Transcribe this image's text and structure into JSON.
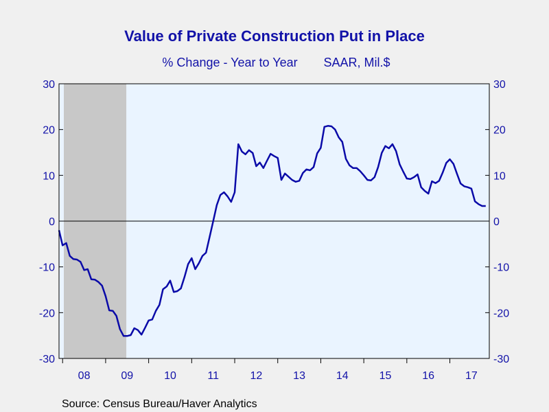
{
  "chart_data": {
    "type": "line",
    "title": "Value of Private Construction Put in Place",
    "subtitle_left": "% Change - Year to Year",
    "subtitle_right": "SAAR, Mil.$",
    "source": "Source:  Census Bureau/Haver Analytics",
    "ylim": [
      -30,
      30
    ],
    "yticks": [
      30,
      20,
      10,
      0,
      -10,
      -20,
      -30
    ],
    "ytick_labels_left": [
      "30",
      "20",
      "10",
      "0",
      "-10",
      "-20",
      "-30"
    ],
    "ytick_labels_right": [
      "30",
      "20",
      "10",
      "0",
      "-10",
      "-20",
      "-30"
    ],
    "x_start": "2007-12",
    "x_end": "2017-12",
    "xtick_labels": [
      "08",
      "09",
      "10",
      "11",
      "12",
      "13",
      "14",
      "15",
      "16",
      "17"
    ],
    "recession": {
      "start": "2007-12",
      "end": "2009-06"
    },
    "zero_line": true,
    "grid": false,
    "colors": {
      "line": "#0a0aa8",
      "text": "#1212a8",
      "plot_bg": "#eaf4ff",
      "recession": "#c8c8c8",
      "page_bg": "#f0f0f0"
    },
    "series": [
      {
        "x": [
          "2007-12",
          "2008-01",
          "2008-02",
          "2008-03",
          "2008-04",
          "2008-05",
          "2008-06",
          "2008-07",
          "2008-08",
          "2008-09",
          "2008-10",
          "2008-11",
          "2008-12",
          "2009-01",
          "2009-02",
          "2009-03",
          "2009-04",
          "2009-05",
          "2009-06",
          "2009-07",
          "2009-08",
          "2009-09",
          "2009-10",
          "2009-11",
          "2009-12",
          "2010-01",
          "2010-02",
          "2010-03",
          "2010-04",
          "2010-05",
          "2010-06",
          "2010-07",
          "2010-08",
          "2010-09",
          "2010-10",
          "2010-11",
          "2010-12",
          "2011-01",
          "2011-02",
          "2011-03",
          "2011-04",
          "2011-05",
          "2011-06",
          "2011-07",
          "2011-08",
          "2011-09",
          "2011-10",
          "2011-11",
          "2011-12",
          "2012-01",
          "2012-02",
          "2012-03",
          "2012-04",
          "2012-05",
          "2012-06",
          "2012-07",
          "2012-08",
          "2012-09",
          "2012-10",
          "2012-11",
          "2012-12",
          "2013-01",
          "2013-02",
          "2013-03",
          "2013-04",
          "2013-05",
          "2013-06",
          "2013-07",
          "2013-08",
          "2013-09",
          "2013-10",
          "2013-11",
          "2013-12",
          "2014-01",
          "2014-02",
          "2014-03",
          "2014-04",
          "2014-05",
          "2014-06",
          "2014-07",
          "2014-08",
          "2014-09",
          "2014-10",
          "2014-11",
          "2014-12",
          "2015-01",
          "2015-02",
          "2015-03",
          "2015-04",
          "2015-05",
          "2015-06",
          "2015-07",
          "2015-08",
          "2015-09",
          "2015-10",
          "2015-11",
          "2015-12",
          "2016-01",
          "2016-02",
          "2016-03",
          "2016-04",
          "2016-05",
          "2016-06",
          "2016-07",
          "2016-08",
          "2016-09",
          "2016-10",
          "2016-11",
          "2016-12",
          "2017-01",
          "2017-02",
          "2017-03",
          "2017-04",
          "2017-05",
          "2017-06",
          "2017-07",
          "2017-08",
          "2017-09",
          "2017-10",
          "2017-11"
        ],
        "values": [
          -2.0,
          -5.3,
          -4.8,
          -7.6,
          -8.3,
          -8.4,
          -8.9,
          -10.7,
          -10.5,
          -12.7,
          -12.8,
          -13.3,
          -14.1,
          -16.4,
          -19.5,
          -19.6,
          -20.7,
          -23.6,
          -25.1,
          -25.1,
          -24.9,
          -23.4,
          -23.8,
          -24.8,
          -23.3,
          -21.7,
          -21.5,
          -19.6,
          -18.3,
          -14.9,
          -14.3,
          -13.0,
          -15.5,
          -15.3,
          -14.7,
          -12.2,
          -9.4,
          -8.1,
          -10.5,
          -9.2,
          -7.6,
          -6.9,
          -3.5,
          0.0,
          3.5,
          5.7,
          6.3,
          5.4,
          4.2,
          6.3,
          16.8,
          15.2,
          14.6,
          15.5,
          14.9,
          12.0,
          12.8,
          11.6,
          13.2,
          14.7,
          14.2,
          13.8,
          9.0,
          10.4,
          9.7,
          9.0,
          8.6,
          8.8,
          10.5,
          11.3,
          11.1,
          11.8,
          14.8,
          16.0,
          20.6,
          20.8,
          20.7,
          20.0,
          18.3,
          17.3,
          13.6,
          12.2,
          11.6,
          11.6,
          10.9,
          10.0,
          9.0,
          8.9,
          9.6,
          11.8,
          14.9,
          16.4,
          15.9,
          16.8,
          15.3,
          12.4,
          10.8,
          9.3,
          9.2,
          9.6,
          10.2,
          7.4,
          6.6,
          6.0,
          8.7,
          8.3,
          8.8,
          10.6,
          12.7,
          13.5,
          12.5,
          10.3,
          8.2,
          7.6,
          7.4,
          7.1,
          4.3,
          3.7,
          3.3,
          3.3
        ]
      }
    ]
  }
}
